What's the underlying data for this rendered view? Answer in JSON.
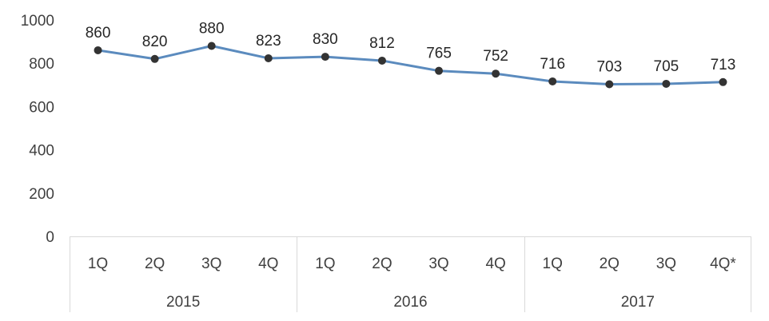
{
  "chart_data": {
    "type": "line",
    "title": "",
    "xlabel": "",
    "ylabel": "",
    "ylim": [
      0,
      1000
    ],
    "yticks": [
      0,
      200,
      400,
      600,
      800,
      1000
    ],
    "grid": false,
    "legend": "none",
    "groups": [
      {
        "label": "2015",
        "categories": [
          "1Q",
          "2Q",
          "3Q",
          "4Q"
        ]
      },
      {
        "label": "2016",
        "categories": [
          "1Q",
          "2Q",
          "3Q",
          "4Q"
        ]
      },
      {
        "label": "2017",
        "categories": [
          "1Q",
          "2Q",
          "3Q",
          "4Q*"
        ]
      }
    ],
    "series": [
      {
        "values": [
          860,
          820,
          880,
          823,
          830,
          812,
          765,
          752,
          716,
          703,
          705,
          713
        ],
        "color": "#5B8BBE",
        "marker_color": "#333333"
      }
    ]
  }
}
